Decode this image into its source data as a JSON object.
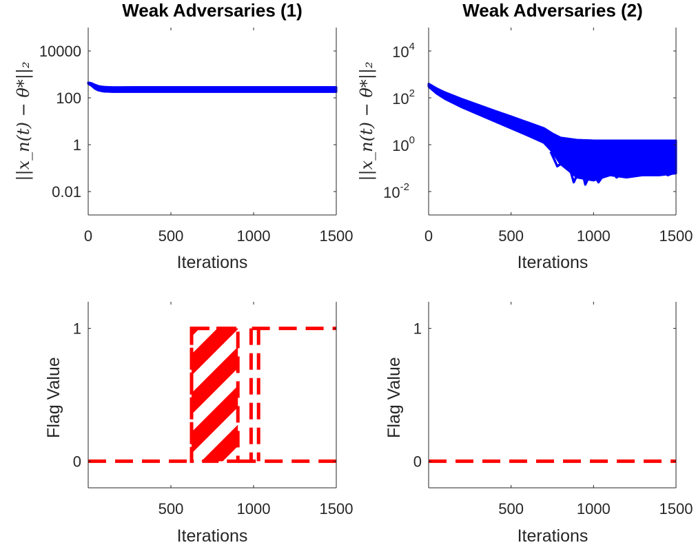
{
  "chart_data": [
    {
      "type": "line",
      "title": "Weak Adversaries (1)",
      "xlabel": "Iterations",
      "ylabel": "||x_n(t) − θ*||₂",
      "yscale": "log",
      "xlim": [
        0,
        1500
      ],
      "ylim": [
        0.001,
        100000
      ],
      "x_ticks": [
        "0",
        "500",
        "1000",
        "1500"
      ],
      "y_ticks": [
        {
          "value": 10000,
          "label": "10000"
        },
        {
          "value": 100,
          "label": "100"
        },
        {
          "value": 1,
          "label": "1"
        },
        {
          "value": 0.01,
          "label": "0.01"
        }
      ],
      "series_color": "#0000ff",
      "band": {
        "x": [
          0,
          20,
          40,
          60,
          80,
          100,
          150,
          200,
          300,
          500,
          800,
          1000,
          1200,
          1500
        ],
        "upper": [
          450,
          420,
          360,
          320,
          300,
          290,
          280,
          280,
          285,
          285,
          285,
          285,
          285,
          285
        ],
        "lower": [
          400,
          330,
          250,
          210,
          195,
          185,
          180,
          180,
          180,
          180,
          180,
          180,
          180,
          180
        ]
      }
    },
    {
      "type": "line",
      "title": "Weak Adversaries (2)",
      "xlabel": "Iterations",
      "ylabel": "||x_n(t) − θ*||₂",
      "yscale": "log",
      "xlim": [
        0,
        1500
      ],
      "ylim": [
        0.001,
        100000
      ],
      "x_ticks": [
        "0",
        "500",
        "1000",
        "1500"
      ],
      "y_ticks": [
        {
          "value": 10000,
          "base": "10",
          "exp": "4"
        },
        {
          "value": 100,
          "base": "10",
          "exp": "2"
        },
        {
          "value": 1,
          "base": "10",
          "exp": "0"
        },
        {
          "value": 0.01,
          "base": "10",
          "exp": "-2"
        }
      ],
      "series_color": "#0000ff",
      "band": {
        "x": [
          0,
          50,
          100,
          200,
          300,
          400,
          500,
          600,
          700,
          750,
          800,
          900,
          1000,
          1100,
          1200,
          1300,
          1400,
          1500
        ],
        "upper": [
          400,
          250,
          170,
          90,
          50,
          28,
          16,
          9,
          5,
          3,
          2,
          1.6,
          1.5,
          1.5,
          1.5,
          1.5,
          1.5,
          1.5
        ],
        "lower": [
          300,
          150,
          90,
          40,
          20,
          10,
          5,
          2.5,
          1.2,
          0.5,
          0.15,
          0.04,
          0.03,
          0.05,
          0.04,
          0.05,
          0.05,
          0.06
        ]
      },
      "dips": [
        {
          "x": [
            740,
            760,
            780,
            800
          ],
          "y": [
            0.5,
            0.25,
            0.12,
            0.15
          ]
        },
        {
          "x": [
            860,
            880,
            900,
            920
          ],
          "y": [
            0.08,
            0.025,
            0.05,
            0.1
          ]
        },
        {
          "x": [
            930,
            950,
            970,
            990
          ],
          "y": [
            0.08,
            0.02,
            0.04,
            0.09
          ]
        },
        {
          "x": [
            1000,
            1030,
            1060,
            1090
          ],
          "y": [
            0.06,
            0.025,
            0.05,
            0.08
          ]
        },
        {
          "x": [
            1110,
            1140,
            1160,
            1190
          ],
          "y": [
            0.07,
            0.04,
            0.05,
            0.08
          ]
        },
        {
          "x": [
            1260,
            1290,
            1320,
            1350
          ],
          "y": [
            0.08,
            0.05,
            0.06,
            0.09
          ]
        },
        {
          "x": [
            1420,
            1450,
            1480,
            1500
          ],
          "y": [
            0.09,
            0.05,
            0.06,
            0.07
          ]
        }
      ]
    },
    {
      "type": "line",
      "title": "",
      "xlabel": "Iterations",
      "ylabel": "Flag Value",
      "xlim": [
        0,
        1500
      ],
      "ylim": [
        -0.2,
        1.2
      ],
      "x_ticks": [
        "500",
        "1000",
        "1500"
      ],
      "y_ticks": [
        {
          "value": 1,
          "label": "1"
        },
        {
          "value": 0,
          "label": "0"
        }
      ],
      "series_color": "#ff0000",
      "line_style": "dashed",
      "segments": [
        {
          "x": [
            0,
            625
          ],
          "y": [
            0,
            0
          ]
        },
        {
          "x": [
            625,
            905
          ],
          "y": [
            1,
            1
          ]
        },
        {
          "x": [
            905,
            1500
          ],
          "y": [
            0,
            0
          ]
        },
        {
          "x": [
            990,
            1500
          ],
          "y": [
            1,
            1
          ]
        }
      ],
      "hatched_region": [
        625,
        905
      ],
      "vertical_dashes": [
        {
          "x": 625
        },
        {
          "x": 985
        },
        {
          "x": 1030
        }
      ]
    },
    {
      "type": "line",
      "title": "",
      "xlabel": "Iterations",
      "ylabel": "Flag Value",
      "xlim": [
        0,
        1500
      ],
      "ylim": [
        -0.2,
        1.2
      ],
      "x_ticks": [
        "500",
        "1000",
        "1500"
      ],
      "y_ticks": [
        {
          "value": 1,
          "label": "1"
        },
        {
          "value": 0,
          "label": "0"
        }
      ],
      "series_color": "#ff0000",
      "line_style": "dashed",
      "segments": [
        {
          "x": [
            0,
            1500
          ],
          "y": [
            0,
            0
          ]
        }
      ]
    }
  ]
}
